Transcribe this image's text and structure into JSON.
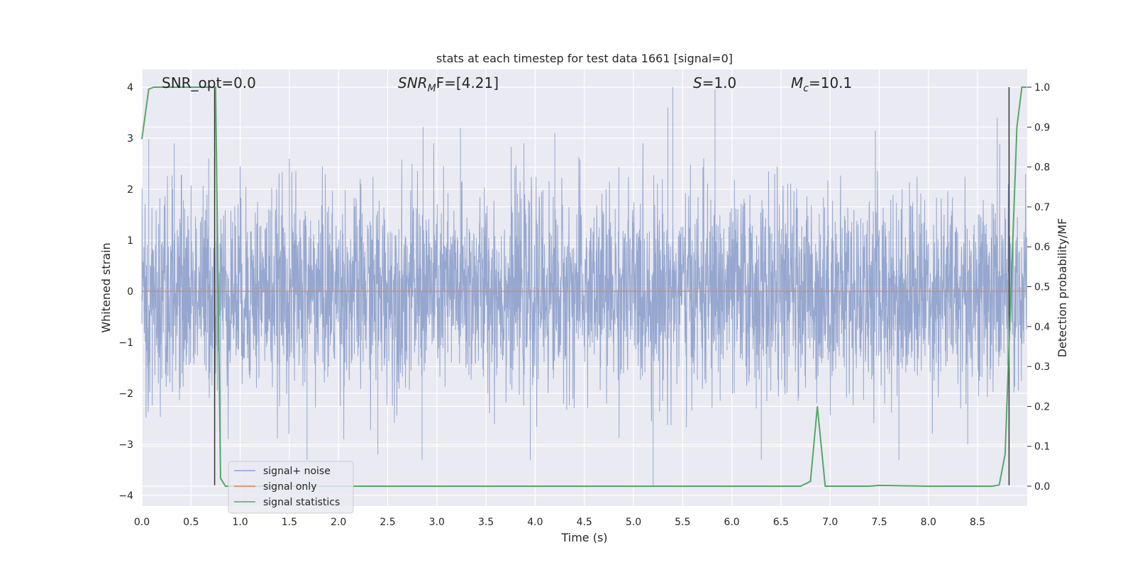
{
  "chart_data": {
    "type": "line",
    "title": "stats at each timestep for test data 1661 [signal=0]",
    "xlabel": "Time (s)",
    "ylabel_left": "Whitened strain",
    "ylabel_right": "Detection probability/MF",
    "xlim": [
      0.0,
      9.0
    ],
    "ylim_left": [
      -4.2,
      4.4
    ],
    "ylim_right": [
      -0.05,
      1.05
    ],
    "xticks": [
      "0.0",
      "0.5",
      "1.0",
      "1.5",
      "2.0",
      "2.5",
      "3.0",
      "3.5",
      "4.0",
      "4.5",
      "5.0",
      "5.5",
      "6.0",
      "6.5",
      "7.0",
      "7.5",
      "8.0",
      "8.5"
    ],
    "yticks_left": [
      "−4",
      "−3",
      "−2",
      "−1",
      "0",
      "1",
      "2",
      "3",
      "4"
    ],
    "yticks_right": [
      "0.0",
      "0.1",
      "0.2",
      "0.3",
      "0.4",
      "0.5",
      "0.6",
      "0.7",
      "0.8",
      "0.9",
      "1.0"
    ],
    "grid": true,
    "legend_placement": "lower-left",
    "annotations": {
      "snr_opt": "SNR_opt=0.0",
      "snr_mf_main": "SNR",
      "snr_mf_sub": "M",
      "snr_mf_rest": "F=[4.21]",
      "s_main": "S",
      "s_rest": "=1.0",
      "mc_main": "M",
      "mc_sub": "c",
      "mc_rest": "=10.1"
    },
    "series": [
      {
        "name": "signal+ noise",
        "axis": "left",
        "color": "#8da0cb",
        "description_note": "dense whitened noise trace; envelope approx -2.5..2.5 with peaks to +4.0 and -3.8",
        "envelope_peaks": [
          {
            "x": 0.07,
            "y": 2.98
          },
          {
            "x": 0.33,
            "y": 2.9
          },
          {
            "x": 0.68,
            "y": 2.6
          },
          {
            "x": 1.5,
            "y": 2.6
          },
          {
            "x": 2.86,
            "y": 3.22
          },
          {
            "x": 3.24,
            "y": 3.2
          },
          {
            "x": 4.2,
            "y": 3.1
          },
          {
            "x": 5.35,
            "y": 3.6
          },
          {
            "x": 5.4,
            "y": 4.0
          },
          {
            "x": 5.83,
            "y": 3.95
          },
          {
            "x": 7.46,
            "y": 3.15
          },
          {
            "x": 8.7,
            "y": 3.4
          },
          {
            "x": 0.8,
            "y": -3.7
          },
          {
            "x": 1.68,
            "y": -3.3
          },
          {
            "x": 2.4,
            "y": -3.2
          },
          {
            "x": 2.85,
            "y": -3.3
          },
          {
            "x": 3.95,
            "y": -3.3
          },
          {
            "x": 5.2,
            "y": -3.8
          },
          {
            "x": 6.3,
            "y": -3.3
          },
          {
            "x": 7.7,
            "y": -3.3
          },
          {
            "x": 8.4,
            "y": -3.0
          }
        ]
      },
      {
        "name": "signal only",
        "axis": "left",
        "color": "#dd8452",
        "x": [
          0.0,
          9.0
        ],
        "y": [
          0.0,
          0.0
        ]
      },
      {
        "name": "signal statistics",
        "axis": "right",
        "color": "#55a868",
        "x": [
          0.0,
          0.07,
          0.12,
          0.2,
          0.5,
          0.72,
          0.75,
          0.8,
          0.85,
          1.0,
          3.7,
          3.8,
          6.7,
          6.8,
          6.87,
          6.95,
          7.0,
          7.4,
          7.5,
          8.0,
          8.65,
          8.72,
          8.78,
          8.9,
          8.95,
          9.0
        ],
        "y": [
          0.87,
          0.995,
          1.0,
          1.0,
          1.0,
          1.0,
          1.0,
          0.02,
          0.0,
          0.0,
          0.0,
          0.0,
          0.0,
          0.012,
          0.2,
          0.0,
          0.0,
          0.0,
          0.002,
          0.0,
          0.0,
          0.003,
          0.08,
          0.9,
          1.0,
          1.0
        ]
      }
    ],
    "vertical_markers": [
      {
        "x": 0.74,
        "y_from": -3.8,
        "y_to": 4.0,
        "color": "#333333"
      },
      {
        "x": 8.82,
        "y_from": -3.8,
        "y_to": 4.0,
        "color": "#333333"
      }
    ]
  },
  "legend": {
    "item1": "signal+ noise",
    "item2": "signal only",
    "item3": "signal statistics"
  }
}
